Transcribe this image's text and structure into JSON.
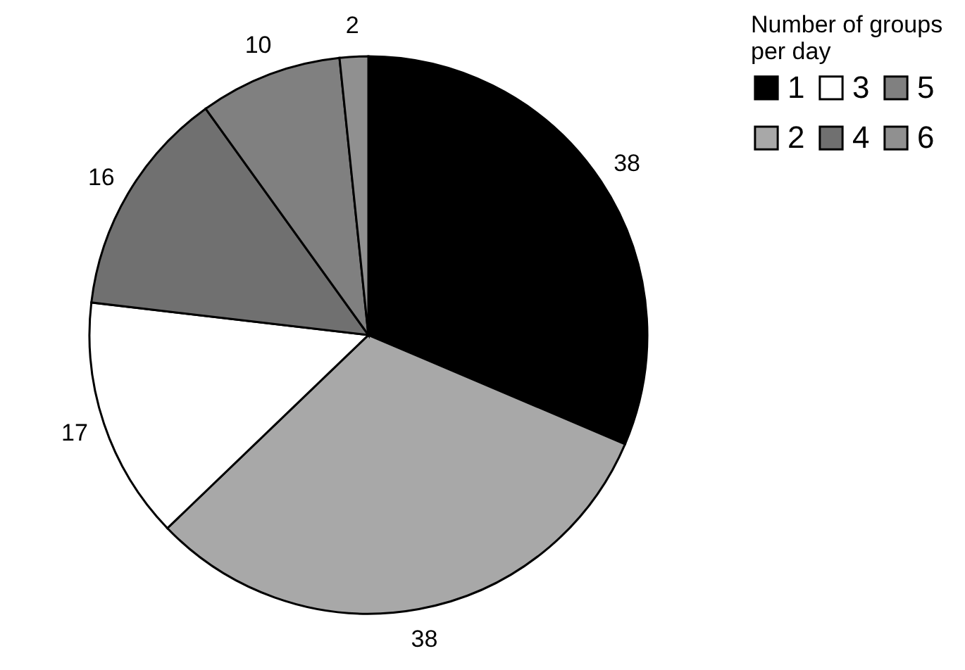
{
  "chart_data": {
    "type": "pie",
    "categories": [
      "1",
      "2",
      "3",
      "4",
      "5",
      "6"
    ],
    "values": [
      38,
      38,
      17,
      16,
      10,
      2
    ],
    "colors": [
      "#000000",
      "#a8a8a8",
      "#ffffff",
      "#707070",
      "#808080",
      "#909090"
    ],
    "data_labels": true,
    "legend": "right",
    "legend_title": "Number of groups per day"
  }
}
